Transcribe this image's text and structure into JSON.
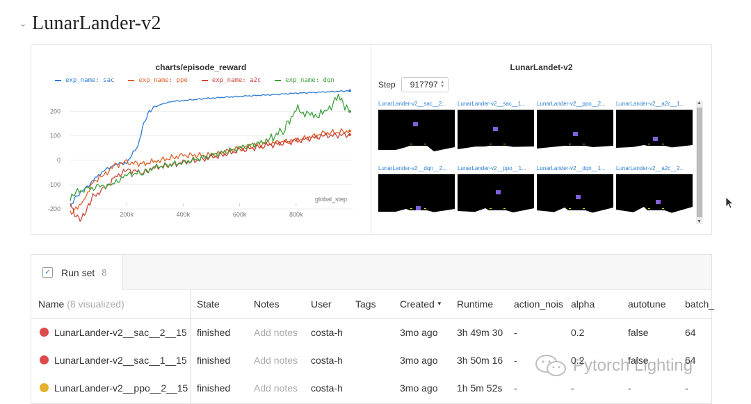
{
  "section": {
    "title": "LunarLander-v2"
  },
  "chart_panel": {
    "title": "charts/episode_reward",
    "chart_data": {
      "type": "line",
      "title": "charts/episode_reward",
      "xlabel": "global_step",
      "ylabel": "",
      "xlim": [
        0,
        1000000
      ],
      "ylim": [
        -240,
        290
      ],
      "x_ticks": [
        "200k",
        "400k",
        "600k",
        "800k"
      ],
      "y_ticks": [
        "200",
        "100",
        "0",
        "-100",
        "-200"
      ],
      "legend_position": "top",
      "series": [
        {
          "name": "exp_name: sac",
          "color": "#2b7bd6",
          "x": [
            0,
            20000,
            60000,
            100000,
            150000,
            200000,
            240000,
            260000,
            280000,
            300000,
            350000,
            400000,
            500000,
            600000,
            700000,
            800000,
            900000,
            990000
          ],
          "y": [
            -190,
            -150,
            -110,
            -60,
            -20,
            -10,
            60,
            150,
            200,
            220,
            240,
            245,
            255,
            262,
            268,
            275,
            280,
            285
          ]
        },
        {
          "name": "exp_name: ppo",
          "color": "#e0602a",
          "x": [
            0,
            20000,
            50000,
            80000,
            120000,
            160000,
            200000,
            260000,
            300000,
            400000,
            500000,
            600000,
            700000,
            800000,
            900000,
            990000
          ],
          "y": [
            -220,
            -200,
            -160,
            -90,
            -60,
            -20,
            -10,
            -15,
            -5,
            20,
            20,
            50,
            70,
            80,
            110,
            120
          ]
        },
        {
          "name": "exp_name: a2c",
          "color": "#c8453a",
          "x": [
            0,
            20000,
            40000,
            60000,
            80000,
            120000,
            160000,
            200000,
            260000,
            300000,
            400000,
            500000,
            600000,
            700000,
            800000,
            900000,
            990000
          ],
          "y": [
            -180,
            -230,
            -240,
            -200,
            -150,
            -120,
            -70,
            -40,
            -50,
            -30,
            -10,
            10,
            40,
            60,
            80,
            100,
            105
          ]
        },
        {
          "name": "exp_name: dqn",
          "color": "#3ca03c",
          "x": [
            0,
            20000,
            60000,
            100000,
            150000,
            200000,
            260000,
            300000,
            400000,
            500000,
            600000,
            700000,
            760000,
            800000,
            850000,
            900000,
            950000,
            990000
          ],
          "y": [
            -160,
            -130,
            -120,
            -110,
            -100,
            -60,
            -50,
            -30,
            -10,
            20,
            50,
            80,
            130,
            210,
            180,
            190,
            260,
            200
          ]
        }
      ]
    }
  },
  "media_panel": {
    "title": "LunarLandet-v2",
    "step_label": "Step",
    "step_value": "917797",
    "items": [
      {
        "label": "LunarLander-v2__sac__2..."
      },
      {
        "label": "LunarLander-v2__sac__1..."
      },
      {
        "label": "LunarLander-v2__ppo__2..."
      },
      {
        "label": "LunarLander-v2__a2c__1..."
      },
      {
        "label": "LunarLander-v2__dqn__2..."
      },
      {
        "label": "LunarLander-v2__ppo__1..."
      },
      {
        "label": "LunarLander-v2__dqn__1..."
      },
      {
        "label": "LunarLander-v2__a2c__2..."
      }
    ]
  },
  "runs": {
    "tab_label": "Run set",
    "tab_count": "8",
    "columns": {
      "name": "Name",
      "name_suffix": "(8 visualized)",
      "state": "State",
      "notes": "Notes",
      "user": "User",
      "tags": "Tags",
      "created": "Created",
      "runtime": "Runtime",
      "action_noise": "action_nois",
      "alpha": "alpha",
      "autotune": "autotune",
      "batch": "batch_"
    },
    "rows": [
      {
        "color": "#dc4a4a",
        "name": "LunarLander-v2__sac__2__15",
        "state": "finished",
        "notes": "Add notes",
        "user": "costa-h",
        "created": "3mo ago",
        "runtime": "3h 49m 30",
        "action_noise": "-",
        "alpha": "0.2",
        "autotune": "false",
        "batch": "64"
      },
      {
        "color": "#dc4a4a",
        "name": "LunarLander-v2__sac__1__15",
        "state": "finished",
        "notes": "Add notes",
        "user": "costa-h",
        "created": "3mo ago",
        "runtime": "3h 50m 16",
        "action_noise": "-",
        "alpha": "0.2",
        "autotune": "false",
        "batch": "64"
      },
      {
        "color": "#e6b22e",
        "name": "LunarLander-v2__ppo__2__15",
        "state": "finished",
        "notes": "Add notes",
        "user": "costa-h",
        "created": "3mo ago",
        "runtime": "1h 5m 52s",
        "action_noise": "-",
        "alpha": "-",
        "autotune": "-",
        "batch": "-"
      }
    ]
  },
  "watermark": {
    "text": "Pytorch Lighting"
  }
}
